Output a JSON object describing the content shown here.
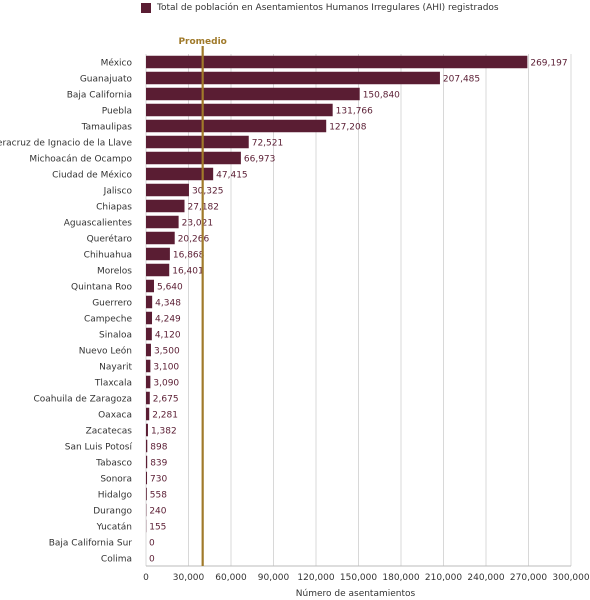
{
  "chart_data": {
    "type": "bar",
    "orientation": "horizontal",
    "legend": {
      "label": "Total de población en Asentamientos Humanos Irregulares (AHI) registrados",
      "placement": "top"
    },
    "reference_line": {
      "label": "Promedio",
      "value": 40000
    },
    "xlabel": "Número de asentamientos",
    "xlim": [
      0,
      300000
    ],
    "xticks": [
      0,
      30000,
      60000,
      90000,
      120000,
      150000,
      180000,
      210000,
      240000,
      270000,
      300000
    ],
    "xtick_labels": [
      "0",
      "30,000",
      "60,000",
      "90,000",
      "120,000",
      "150,000",
      "180,000",
      "210,000",
      "240,000",
      "270,000",
      "300,000"
    ],
    "grid": true,
    "categories": [
      "México",
      "Guanajuato",
      "Baja California",
      "Puebla",
      "Tamaulipas",
      "Veracruz de Ignacio de la Llave",
      "Michoacán de Ocampo",
      "Ciudad de México",
      "Jalisco",
      "Chiapas",
      "Aguascalientes",
      "Querétaro",
      "Chihuahua",
      "Morelos",
      "Quintana Roo",
      "Guerrero",
      "Campeche",
      "Sinaloa",
      "Nuevo León",
      "Nayarit",
      "Tlaxcala",
      "Coahuila de Zaragoza",
      "Oaxaca",
      "Zacatecas",
      "San Luis Potosí",
      "Tabasco",
      "Sonora",
      "Hidalgo",
      "Durango",
      "Yucatán",
      "Baja California Sur",
      "Colima"
    ],
    "values": [
      269197,
      207485,
      150840,
      131766,
      127208,
      72521,
      66973,
      47415,
      30325,
      27182,
      23021,
      20266,
      16868,
      16401,
      5640,
      4348,
      4249,
      4120,
      3500,
      3100,
      3090,
      2675,
      2281,
      1382,
      898,
      839,
      730,
      558,
      240,
      155,
      0,
      0
    ],
    "value_labels": [
      "269,197",
      "207,485",
      "150,840",
      "131,766",
      "127,208",
      "72,521",
      "66,973",
      "47,415",
      "30,325",
      "27,182",
      "23,021",
      "20,266",
      "16,868",
      "16,401",
      "5,640",
      "4,348",
      "4,249",
      "4,120",
      "3,500",
      "3,100",
      "3,090",
      "2,675",
      "2,281",
      "1,382",
      "898",
      "839",
      "730",
      "558",
      "240",
      "155",
      "0",
      "0"
    ]
  },
  "colors": {
    "bar": "#5a1d33",
    "average": "#a07a2a",
    "grid": "#d8d8d8",
    "text": "#333333",
    "value_text": "#5a1d33"
  }
}
